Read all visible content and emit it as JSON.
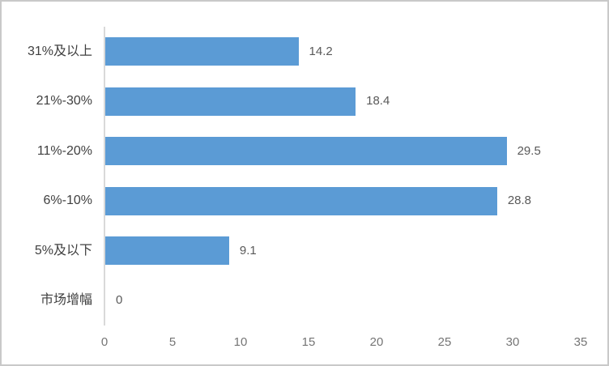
{
  "chart_data": {
    "type": "bar",
    "orientation": "horizontal",
    "title": "",
    "xlabel": "",
    "ylabel": "",
    "categories": [
      "31%及以上",
      "21%-30%",
      "11%-20%",
      "6%-10%",
      "5%及以下",
      "市场增幅"
    ],
    "values": [
      14.2,
      18.4,
      29.5,
      28.8,
      9.1,
      0
    ],
    "data_labels": [
      "14.2",
      "18.4",
      "29.5",
      "28.8",
      "9.1",
      "0"
    ],
    "x_ticks": [
      0,
      5,
      10,
      15,
      20,
      25,
      30,
      35
    ],
    "xlim": [
      0,
      35
    ],
    "grid": "off",
    "legend": "none",
    "bar_color": "#5b9bd5",
    "axis_line_color": "#d9d9d9",
    "category_label_color": "#404040",
    "value_label_color": "#595959",
    "tick_label_color": "#757575",
    "background_color": "#ffffff",
    "border_color": "#c9c9c9"
  }
}
